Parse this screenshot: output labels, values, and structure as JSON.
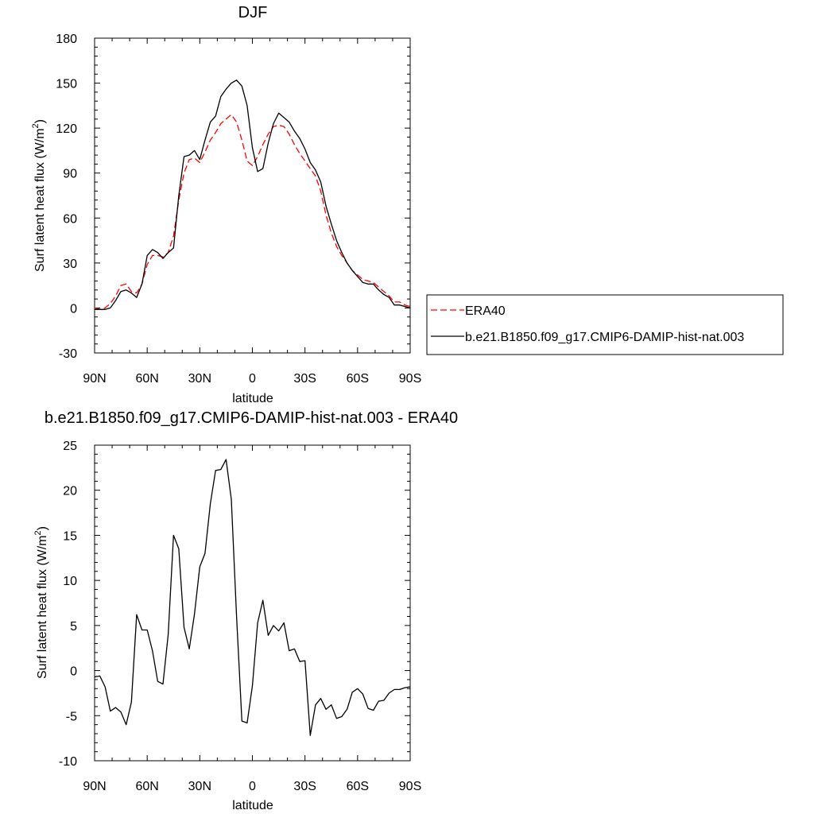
{
  "colors": {
    "era40": "#ff0000",
    "model": "#000000",
    "axis": "#000000"
  },
  "legend": {
    "placement": "right",
    "entries": [
      {
        "label": "ERA40",
        "style": "dashed",
        "color": "#ff0000"
      },
      {
        "label": "b.e21.B1850.f09_g17.CMIP6-DAMIP-hist-nat.003",
        "style": "solid",
        "color": "#000000"
      }
    ]
  },
  "chart_data": [
    {
      "type": "line",
      "title": "DJF",
      "xlabel": "latitude",
      "ylabel": "Surf latent heat flux (W/m",
      "ylabel_sup": "2",
      "ylabel_tail": ")",
      "xlim": [
        90,
        -90
      ],
      "ylim": [
        -30,
        180
      ],
      "yticks": [
        180,
        150,
        120,
        90,
        60,
        30,
        0,
        -30
      ],
      "xticks": [
        {
          "value": 90,
          "label": "90N"
        },
        {
          "value": 60,
          "label": "60N"
        },
        {
          "value": 30,
          "label": "30N"
        },
        {
          "value": 0,
          "label": "0"
        },
        {
          "value": -30,
          "label": "30S"
        },
        {
          "value": -60,
          "label": "60S"
        },
        {
          "value": -90,
          "label": "90S"
        }
      ],
      "x": [
        90,
        87,
        84,
        81,
        78,
        75,
        72,
        69,
        66,
        63,
        60,
        57,
        54,
        51,
        48,
        45,
        42,
        39,
        36,
        33,
        30,
        27,
        24,
        21,
        18,
        15,
        12,
        9,
        6,
        3,
        0,
        -3,
        -6,
        -9,
        -12,
        -15,
        -18,
        -21,
        -24,
        -27,
        -30,
        -33,
        -36,
        -39,
        -42,
        -45,
        -48,
        -51,
        -54,
        -57,
        -60,
        -63,
        -66,
        -69,
        -72,
        -75,
        -78,
        -81,
        -84,
        -87,
        -90
      ],
      "series": [
        {
          "name": "ERA40",
          "values": [
            0,
            -1,
            0,
            3,
            8,
            15,
            16,
            11,
            10,
            16,
            29,
            35,
            35,
            34,
            37,
            48,
            72,
            90,
            99,
            100,
            97,
            104,
            112,
            117,
            123,
            126,
            129,
            124,
            112,
            98,
            95,
            101,
            109,
            116,
            121,
            122,
            121,
            116,
            109,
            103,
            98,
            93,
            88,
            78,
            62,
            50,
            41,
            35,
            30,
            25,
            22,
            19,
            18,
            17,
            14,
            11,
            8,
            4,
            4,
            2,
            1
          ]
        },
        {
          "name": "b.e21.B1850.f09_g17.CMIP6-DAMIP-hist-nat.003",
          "values": [
            -1,
            -1,
            -1,
            0,
            5,
            11,
            12,
            10,
            7,
            16,
            35,
            39,
            37,
            33,
            37,
            40,
            75,
            101,
            102,
            105,
            99,
            112,
            124,
            128,
            141,
            146,
            150,
            152,
            148,
            135,
            107,
            91,
            93,
            110,
            123,
            130,
            127,
            124,
            118,
            113,
            106,
            97,
            92,
            84,
            68,
            56,
            45,
            37,
            30,
            25,
            21,
            17,
            16,
            16,
            12,
            9,
            7,
            2,
            2,
            1,
            0
          ]
        }
      ]
    },
    {
      "type": "line",
      "title": "b.e21.B1850.f09_g17.CMIP6-DAMIP-hist-nat.003 - ERA40",
      "xlabel": "latitude",
      "ylabel": "Surf latent heat flux (W/m",
      "ylabel_sup": "2",
      "ylabel_tail": ")",
      "xlim": [
        90,
        -90
      ],
      "ylim": [
        -10,
        25
      ],
      "yticks": [
        25,
        20,
        15,
        10,
        5,
        0,
        -5,
        -10
      ],
      "xticks": [
        {
          "value": 90,
          "label": "90N"
        },
        {
          "value": 60,
          "label": "60N"
        },
        {
          "value": 30,
          "label": "30N"
        },
        {
          "value": 0,
          "label": "0"
        },
        {
          "value": -30,
          "label": "30S"
        },
        {
          "value": -60,
          "label": "60S"
        },
        {
          "value": -90,
          "label": "90S"
        }
      ],
      "x": [
        90,
        87,
        84,
        81,
        78,
        75,
        72,
        69,
        66,
        63,
        60,
        57,
        54,
        51,
        48,
        45,
        42,
        39,
        36,
        33,
        30,
        27,
        24,
        21,
        18,
        15,
        12,
        9,
        6,
        3,
        0,
        -3,
        -6,
        -9,
        -12,
        -15,
        -18,
        -21,
        -24,
        -27,
        -30,
        -33,
        -36,
        -39,
        -42,
        -45,
        -48,
        -51,
        -54,
        -57,
        -60,
        -63,
        -66,
        -69,
        -72,
        -75,
        -78,
        -81,
        -84,
        -87,
        -90
      ],
      "series": [
        {
          "values": [
            -0.7,
            -0.6,
            -1.8,
            -4.5,
            -4.1,
            -4.6,
            -6.0,
            -3.5,
            6.2,
            4.5,
            4.5,
            2.2,
            -1.2,
            -1.5,
            4.0,
            15.0,
            13.5,
            4.8,
            2.4,
            6.3,
            11.5,
            13.0,
            18.5,
            22.2,
            22.3,
            23.4,
            19.0,
            6.0,
            -5.6,
            -5.8,
            -1.7,
            5.3,
            7.8,
            3.9,
            5.0,
            4.4,
            5.3,
            2.2,
            2.4,
            1.0,
            1.1,
            -7.2,
            -3.8,
            -3.1,
            -4.3,
            -3.8,
            -5.3,
            -5.1,
            -4.3,
            -2.4,
            -2.0,
            -2.6,
            -4.2,
            -4.4,
            -3.4,
            -3.3,
            -2.5,
            -2.1,
            -2.1,
            -1.9,
            -1.8
          ]
        }
      ]
    }
  ]
}
